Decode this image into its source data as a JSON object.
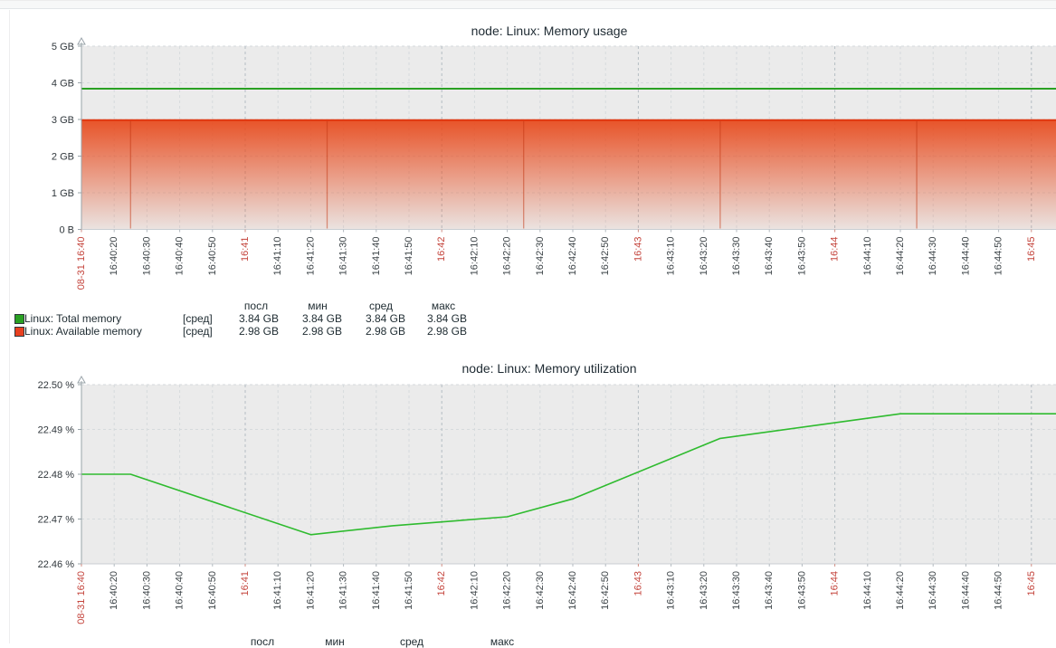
{
  "chart_data": [
    {
      "type": "area",
      "title": "node: Linux: Memory usage",
      "xlabel": "",
      "ylabel": "",
      "ylim_gb": [
        0,
        5
      ],
      "grid": true,
      "legend_position": "bottom",
      "y_tick_labels": [
        "5 GB",
        "4 GB",
        "3 GB",
        "2 GB",
        "1 GB",
        "0 B"
      ],
      "x_tick_labels": [
        "08-31 16:40",
        "16:40:20",
        "16:40:30",
        "16:40:40",
        "16:40:50",
        "16:41",
        "16:41:10",
        "16:41:20",
        "16:41:30",
        "16:41:40",
        "16:41:50",
        "16:42",
        "16:42:10",
        "16:42:20",
        "16:42:30",
        "16:42:40",
        "16:42:50",
        "16:43",
        "16:43:10",
        "16:43:20",
        "16:43:30",
        "16:43:40",
        "16:43:50",
        "16:44",
        "16:44:10",
        "16:44:20",
        "16:44:30",
        "16:44:40",
        "16:44:50",
        "16:45"
      ],
      "x_tick_red_indices": [
        0,
        5,
        11,
        17,
        23,
        29
      ],
      "series": [
        {
          "name": "Linux: Total memory",
          "style": "line",
          "color": "#2aa123",
          "unit": "GB",
          "constant_value": 3.84
        },
        {
          "name": "Linux: Available memory",
          "style": "gradient_area",
          "color": "#e8401f",
          "unit": "GB",
          "constant_value": 2.98,
          "dip_times": [
            "16:40:25",
            "16:41:25",
            "16:42:25",
            "16:43:25",
            "16:44:25"
          ]
        }
      ],
      "legend": {
        "headers": [
          "посл",
          "мин",
          "сред",
          "макс"
        ],
        "rows": [
          {
            "swatch": "#2aa123",
            "label": "Linux: Total memory",
            "func": "[сред]",
            "values": [
              "3.84 GB",
              "3.84 GB",
              "3.84 GB",
              "3.84 GB"
            ]
          },
          {
            "swatch": "#e8401f",
            "label": "Linux: Available memory",
            "func": "[сред]",
            "values": [
              "2.98 GB",
              "2.98 GB",
              "2.98 GB",
              "2.98 GB"
            ]
          }
        ]
      }
    },
    {
      "type": "line",
      "title": "node: Linux: Memory utilization",
      "xlabel": "",
      "ylabel": "",
      "ylim_percent": [
        22.46,
        22.5
      ],
      "grid": true,
      "legend_position": "bottom",
      "y_tick_labels": [
        "22.50 %",
        "22.49 %",
        "22.48 %",
        "22.47 %",
        "22.46 %"
      ],
      "x_tick_labels": [
        "08-31 16:40",
        "16:40:20",
        "16:40:30",
        "16:40:40",
        "16:40:50",
        "16:41",
        "16:41:10",
        "16:41:20",
        "16:41:30",
        "16:41:40",
        "16:41:50",
        "16:42",
        "16:42:10",
        "16:42:20",
        "16:42:30",
        "16:42:40",
        "16:42:50",
        "16:43",
        "16:43:10",
        "16:43:20",
        "16:43:30",
        "16:43:40",
        "16:43:50",
        "16:44",
        "16:44:10",
        "16:44:20",
        "16:44:30",
        "16:44:40",
        "16:44:50",
        "16:45"
      ],
      "x_tick_red_indices": [
        0,
        5,
        11,
        17,
        23,
        29
      ],
      "series": [
        {
          "name": "Linux: Memory utilization",
          "style": "line",
          "color": "#2fbb2f",
          "unit": "%",
          "points": [
            [
              "16:40:10",
              22.48
            ],
            [
              "16:40:25",
              22.48
            ],
            [
              "16:41:20",
              22.4665
            ],
            [
              "16:41:45",
              22.4685
            ],
            [
              "16:42:20",
              22.4705
            ],
            [
              "16:42:40",
              22.4745
            ],
            [
              "16:43:25",
              22.488
            ],
            [
              "16:43:55",
              22.491
            ],
            [
              "16:44:20",
              22.4935
            ],
            [
              "16:45:15",
              22.4935
            ]
          ]
        }
      ],
      "legend": {
        "headers": [
          "посл",
          "мин",
          "сред",
          "макс"
        ],
        "rows": []
      }
    }
  ],
  "colors": {
    "plot_bg": "#ebebeb",
    "grid": "#d6dadd",
    "grid_minute": "#b4bdc3",
    "axis_y": "#9aa4aa",
    "axis_x": "#c9ced2",
    "tick_label": "#3c4347",
    "tick_label_red": "#c4443c",
    "green_line_1": "#2aa123",
    "green_line_2": "#2fbb2f",
    "red_line": "#e03610",
    "red_fill": "#e84c1f"
  }
}
